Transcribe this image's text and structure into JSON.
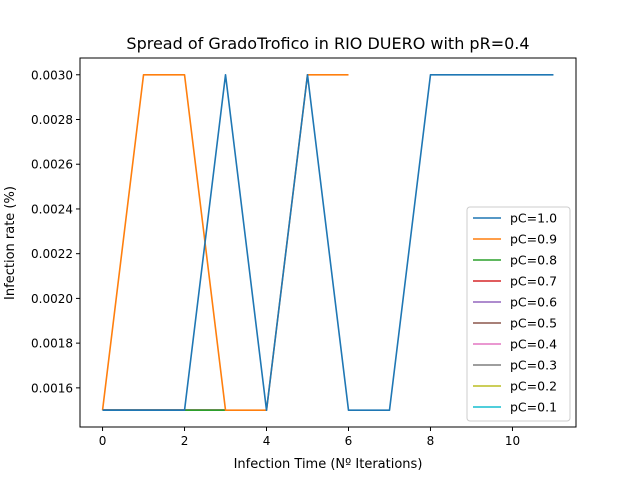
{
  "chart_data": {
    "type": "line",
    "title": "Spread of GradoTrofico in RIO DUERO with pR=0.4",
    "xlabel": "Infection Time (Nº Iterations)",
    "ylabel": "Infection rate (%)",
    "xlim": [
      -0.55,
      11.55
    ],
    "ylim": [
      0.001425,
      0.003075
    ],
    "xticks": [
      0,
      2,
      4,
      6,
      8,
      10
    ],
    "xtick_labels": [
      "0",
      "2",
      "4",
      "6",
      "8",
      "10"
    ],
    "yticks": [
      0.0016,
      0.0018,
      0.002,
      0.0022,
      0.0024,
      0.0026,
      0.0028,
      0.003
    ],
    "ytick_labels": [
      "0.0016",
      "0.0018",
      "0.0020",
      "0.0022",
      "0.0024",
      "0.0026",
      "0.0028",
      "0.0030"
    ],
    "grid": false,
    "legend_position": "lower-right",
    "series": [
      {
        "name": "pC=1.0",
        "color": "#1f77b4",
        "x": [
          0,
          1,
          2,
          3,
          4,
          5,
          6,
          7,
          8,
          9,
          10,
          11
        ],
        "y": [
          0.0015,
          0.0015,
          0.0015,
          0.003,
          0.0015,
          0.003,
          0.0015,
          0.0015,
          0.003,
          0.003,
          0.003,
          0.003
        ]
      },
      {
        "name": "pC=0.9",
        "color": "#ff7f0e",
        "x": [
          0,
          1,
          2,
          3,
          4,
          5,
          6
        ],
        "y": [
          0.0015,
          0.003,
          0.003,
          0.0015,
          0.0015,
          0.003,
          0.003
        ]
      },
      {
        "name": "pC=0.8",
        "color": "#2ca02c",
        "x": [
          0,
          1,
          2,
          3
        ],
        "y": [
          0.0015,
          0.0015,
          0.0015,
          0.0015
        ]
      },
      {
        "name": "pC=0.7",
        "color": "#d62728",
        "x": [
          0,
          1,
          2,
          3
        ],
        "y": [
          0.0015,
          0.0015,
          0.0015,
          0.0015
        ]
      },
      {
        "name": "pC=0.6",
        "color": "#9467bd",
        "x": [
          0,
          1,
          2,
          3
        ],
        "y": [
          0.0015,
          0.0015,
          0.0015,
          0.0015
        ]
      },
      {
        "name": "pC=0.5",
        "color": "#8c564b",
        "x": [
          0,
          1,
          2,
          3
        ],
        "y": [
          0.0015,
          0.0015,
          0.0015,
          0.0015
        ]
      },
      {
        "name": "pC=0.4",
        "color": "#e377c2",
        "x": [
          0,
          1,
          2,
          3
        ],
        "y": [
          0.0015,
          0.0015,
          0.0015,
          0.0015
        ]
      },
      {
        "name": "pC=0.3",
        "color": "#7f7f7f",
        "x": [
          0,
          1,
          2,
          3
        ],
        "y": [
          0.0015,
          0.0015,
          0.0015,
          0.0015
        ]
      },
      {
        "name": "pC=0.2",
        "color": "#bcbd22",
        "x": [
          0,
          1,
          2,
          3
        ],
        "y": [
          0.0015,
          0.0015,
          0.0015,
          0.0015
        ]
      },
      {
        "name": "pC=0.1",
        "color": "#17becf",
        "x": [
          0,
          1,
          2,
          3
        ],
        "y": [
          0.0015,
          0.0015,
          0.0015,
          0.0015
        ]
      }
    ]
  }
}
